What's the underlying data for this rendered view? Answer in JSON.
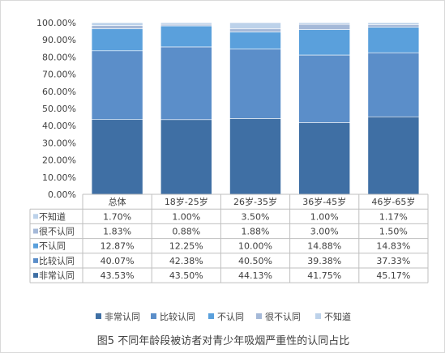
{
  "chart_data": {
    "type": "bar",
    "stacked": true,
    "percent_stacked": true,
    "categories": [
      "总体",
      "18岁-25岁",
      "26岁-35岁",
      "36岁-45岁",
      "46岁-65岁"
    ],
    "series": [
      {
        "name": "非常认同",
        "values": [
          43.53,
          43.5,
          44.13,
          41.75,
          45.17
        ],
        "labels": [
          "43.53%",
          "43.50%",
          "44.13%",
          "41.75%",
          "45.17%"
        ],
        "color": "#3f6fa4"
      },
      {
        "name": "比较认同",
        "values": [
          40.07,
          42.38,
          40.5,
          39.38,
          37.33
        ],
        "labels": [
          "40.07%",
          "42.38%",
          "40.50%",
          "39.38%",
          "37.33%"
        ],
        "color": "#5b8ec9"
      },
      {
        "name": "不认同",
        "values": [
          12.87,
          12.25,
          10.0,
          14.88,
          14.83
        ],
        "labels": [
          "12.87%",
          "12.25%",
          "10.00%",
          "14.88%",
          "14.83%"
        ],
        "color": "#5aa0dc"
      },
      {
        "name": "很不认同",
        "values": [
          1.83,
          0.88,
          1.88,
          3.0,
          1.5
        ],
        "labels": [
          "1.83%",
          "0.88%",
          "1.88%",
          "3.00%",
          "1.50%"
        ],
        "color": "#a5b9d8"
      },
      {
        "name": "不知道",
        "values": [
          1.7,
          1.0,
          3.5,
          1.0,
          1.17
        ],
        "labels": [
          "1.70%",
          "1.00%",
          "3.50%",
          "1.00%",
          "1.17%"
        ],
        "color": "#bdd2ea"
      }
    ],
    "y_ticks": [
      "0.00%",
      "10.00%",
      "20.00%",
      "30.00%",
      "40.00%",
      "50.00%",
      "60.00%",
      "70.00%",
      "80.00%",
      "90.00%",
      "100.00%"
    ],
    "ylim": [
      0,
      100
    ],
    "data_table": true,
    "legend_position": "bottom",
    "grid": false
  },
  "caption": "图5 不同年龄段被访者对青少年吸烟严重性的认同占比"
}
